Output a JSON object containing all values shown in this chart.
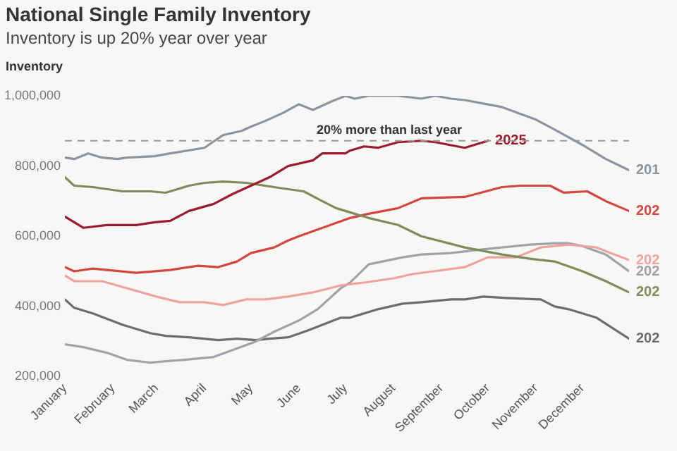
{
  "chart_data": {
    "type": "line",
    "title": "National Single Family Inventory",
    "subtitle": "Inventory is up 20% year over year",
    "ylabel": "Inventory",
    "xlim": [
      "--01-01",
      "--12-31"
    ],
    "xticks": [
      {
        "value": "--01-01",
        "label": "January"
      },
      {
        "value": "--02-01",
        "label": "February"
      },
      {
        "value": "--03-01",
        "label": "March"
      },
      {
        "value": "--04-01",
        "label": "April"
      },
      {
        "value": "--05-01",
        "label": "May"
      },
      {
        "value": "--06-01",
        "label": "June"
      },
      {
        "value": "--07-01",
        "label": "July"
      },
      {
        "value": "--08-01",
        "label": "August"
      },
      {
        "value": "--09-01",
        "label": "September"
      },
      {
        "value": "--10-01",
        "label": "October"
      },
      {
        "value": "--11-01",
        "label": "November"
      },
      {
        "value": "--12-01",
        "label": "December"
      }
    ],
    "ylim": [
      200000,
      1000000
    ],
    "yticks": [
      {
        "value": 200000,
        "label": "200,000"
      },
      {
        "value": 400000,
        "label": "400,000"
      },
      {
        "value": 600000,
        "label": "600,000"
      },
      {
        "value": 800000,
        "label": "800,000"
      },
      {
        "value": 1000000,
        "label": "1,000,000"
      }
    ],
    "grid": false,
    "legend": false,
    "marker": "none",
    "line_style": "solid",
    "ref_lines": [
      {
        "axis": "y",
        "value": 872000,
        "label": "20% more than last year",
        "color": "#999999",
        "line_style": "dashed"
      }
    ],
    "series": [
      {
        "name": "201",
        "color": "#8d93a0",
        "x": [
          "--01-01",
          "--01-07",
          "--01-16",
          "--01-25",
          "--02-04",
          "--02-10",
          "--02-28",
          "--03-10",
          "--04-01",
          "--04-13",
          "--04-25",
          "--05-01",
          "--05-10",
          "--05-22",
          "--06-01",
          "--06-10",
          "--06-22",
          "--07-01",
          "--07-07",
          "--07-16",
          "--08-04",
          "--08-19",
          "--08-28",
          "--09-07",
          "--09-16",
          "--10-10",
          "--11-01",
          "--11-13",
          "--12-01",
          "--12-16",
          "--12-31"
        ],
        "values": [
          824000,
          820000,
          836000,
          824000,
          820000,
          824000,
          828000,
          836000,
          852000,
          888000,
          900000,
          912000,
          928000,
          952000,
          976000,
          960000,
          984000,
          1000000,
          992000,
          1000000,
          1000000,
          992000,
          1000000,
          992000,
          988000,
          968000,
          932000,
          904000,
          860000,
          820000,
          788000
        ]
      },
      {
        "name": "2025",
        "color": "#9b1c2e",
        "x": [
          "--01-01",
          "--01-13",
          "--01-28",
          "--02-16",
          "--02-28",
          "--03-10",
          "--03-22",
          "--04-07",
          "--04-19",
          "--05-01",
          "--05-13",
          "--05-25",
          "--06-10",
          "--06-16",
          "--07-01",
          "--07-04",
          "--07-13",
          "--07-22",
          "--08-04",
          "--08-19",
          "--08-28",
          "--09-16",
          "--09-28",
          "--10-01"
        ],
        "values": [
          656000,
          624000,
          632000,
          632000,
          640000,
          644000,
          672000,
          692000,
          720000,
          744000,
          768000,
          800000,
          816000,
          836000,
          836000,
          844000,
          856000,
          852000,
          868000,
          872000,
          868000,
          852000,
          868000,
          872000
        ]
      },
      {
        "name": "202",
        "color": "#7e8c5c",
        "x": [
          "--01-01",
          "--01-07",
          "--01-19",
          "--02-07",
          "--02-25",
          "--03-07",
          "--03-22",
          "--04-01",
          "--04-13",
          "--04-28",
          "--05-10",
          "--05-22",
          "--06-04",
          "--06-16",
          "--06-25",
          "--07-16",
          "--08-04",
          "--08-19",
          "--09-16",
          "--10-10",
          "--10-28",
          "--11-13",
          "--12-01",
          "--12-16",
          "--12-31"
        ],
        "values": [
          768000,
          744000,
          740000,
          728000,
          728000,
          724000,
          744000,
          752000,
          756000,
          752000,
          744000,
          736000,
          728000,
          700000,
          680000,
          652000,
          632000,
          600000,
          568000,
          548000,
          536000,
          528000,
          500000,
          472000,
          440000
        ]
      },
      {
        "name": "202",
        "color": "#d4463e",
        "x": [
          "--01-01",
          "--01-07",
          "--01-19",
          "--02-16",
          "--03-10",
          "--03-28",
          "--04-10",
          "--04-22",
          "--05-01",
          "--05-16",
          "--05-25",
          "--06-01",
          "--07-04",
          "--07-16",
          "--08-04",
          "--08-19",
          "--09-16",
          "--10-10",
          "--10-22",
          "--11-10",
          "--11-19",
          "--12-04",
          "--12-16",
          "--12-31"
        ],
        "values": [
          512000,
          500000,
          508000,
          496000,
          504000,
          516000,
          512000,
          528000,
          552000,
          568000,
          588000,
          600000,
          652000,
          664000,
          680000,
          708000,
          712000,
          740000,
          744000,
          744000,
          724000,
          728000,
          700000,
          672000
        ]
      },
      {
        "name": "202",
        "color": "#efa39e",
        "x": [
          "--01-01",
          "--01-07",
          "--01-25",
          "--02-10",
          "--03-01",
          "--03-16",
          "--04-01",
          "--04-13",
          "--04-28",
          "--05-10",
          "--05-25",
          "--06-10",
          "--06-28",
          "--07-13",
          "--08-01",
          "--08-13",
          "--09-16",
          "--10-01",
          "--10-19",
          "--11-04",
          "--11-22",
          "--12-10",
          "--12-31"
        ],
        "values": [
          488000,
          472000,
          472000,
          452000,
          428000,
          412000,
          412000,
          404000,
          420000,
          420000,
          428000,
          440000,
          460000,
          468000,
          480000,
          492000,
          512000,
          540000,
          540000,
          568000,
          576000,
          568000,
          532000
        ]
      },
      {
        "name": "202",
        "color": "#a0a4aa",
        "x": [
          "--01-01",
          "--01-13",
          "--01-28",
          "--02-10",
          "--02-25",
          "--03-07",
          "--03-19",
          "--04-07",
          "--04-22",
          "--05-04",
          "--05-16",
          "--06-01",
          "--06-13",
          "--06-28",
          "--07-04",
          "--07-16",
          "--08-07",
          "--08-19",
          "--09-07",
          "--09-22",
          "--10-10",
          "--10-28",
          "--11-13",
          "--11-22",
          "--12-01",
          "--12-16",
          "--12-31"
        ],
        "values": [
          292000,
          284000,
          268000,
          248000,
          240000,
          244000,
          248000,
          256000,
          280000,
          300000,
          328000,
          360000,
          392000,
          452000,
          468000,
          520000,
          540000,
          548000,
          552000,
          560000,
          568000,
          576000,
          580000,
          580000,
          572000,
          548000,
          500000
        ]
      },
      {
        "name": "202",
        "color": "#6d6d6d",
        "x": [
          "--01-01",
          "--01-07",
          "--01-19",
          "--02-07",
          "--02-25",
          "--03-07",
          "--03-22",
          "--04-10",
          "--04-22",
          "--05-04",
          "--05-13",
          "--05-25",
          "--06-07",
          "--06-28",
          "--07-04",
          "--07-22",
          "--08-07",
          "--08-19",
          "--09-07",
          "--09-16",
          "--09-28",
          "--10-13",
          "--11-04",
          "--11-13",
          "--11-22",
          "--12-10",
          "--12-31"
        ],
        "values": [
          420000,
          396000,
          380000,
          348000,
          324000,
          316000,
          312000,
          304000,
          308000,
          304000,
          308000,
          312000,
          332000,
          368000,
          368000,
          392000,
          408000,
          412000,
          420000,
          420000,
          428000,
          424000,
          420000,
          400000,
          392000,
          368000,
          308000
        ]
      }
    ]
  }
}
